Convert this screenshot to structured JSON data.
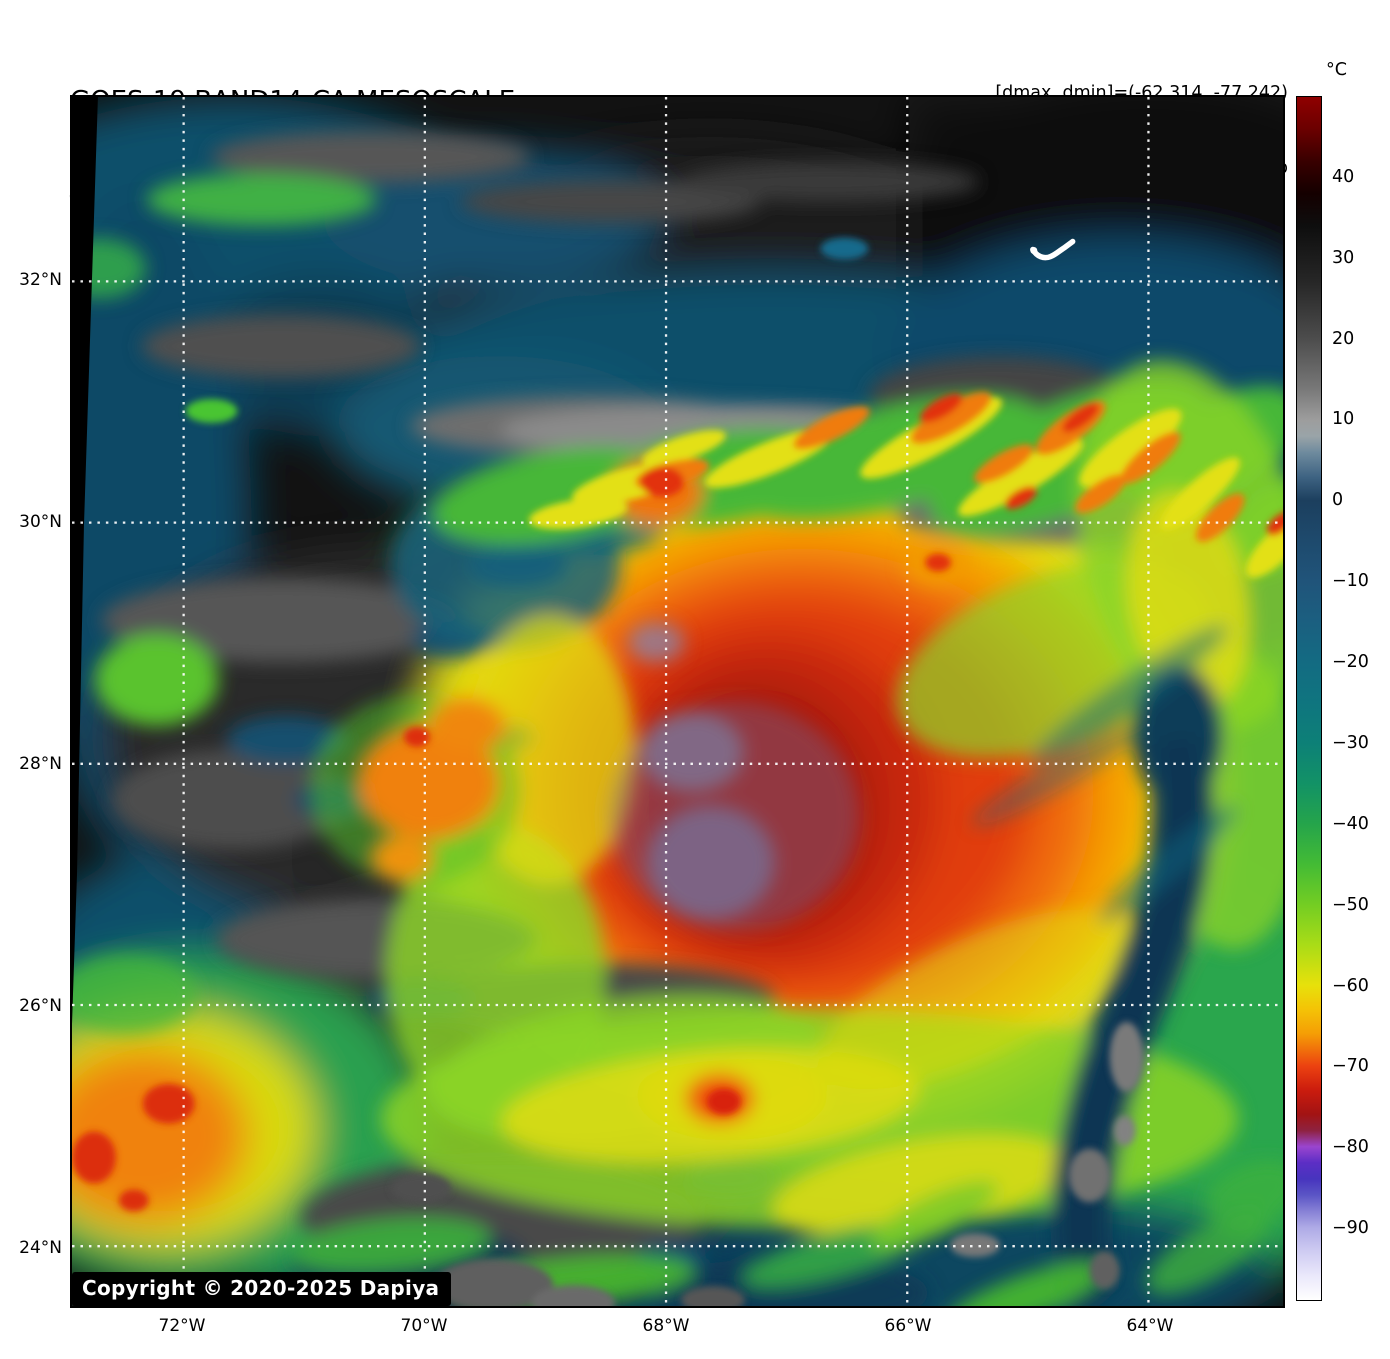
{
  "header": {
    "title": "GOES-19 BAND14-CA MESOSCALE",
    "time_line": "Time: 2025/09/29 17:57:53Z",
    "dmax_dmin": "[dmax, dmin]=(-62.314, -77.242)",
    "storm_info": "08L.HUMBERTO | 125kt, 938mb"
  },
  "map_overlay": {
    "copyright": "Copyright © 2020-2025 Dapiya"
  },
  "axes": {
    "lat_labels": [
      "32°N",
      "30°N",
      "28°N",
      "26°N",
      "24°N"
    ],
    "lon_labels": [
      "72°W",
      "70°W",
      "68°W",
      "66°W",
      "64°W"
    ]
  },
  "colorbar": {
    "unit_label": "°C",
    "value_max": 50,
    "value_min": -99,
    "ticks": [
      {
        "label": "40",
        "value": 40
      },
      {
        "label": "30",
        "value": 30
      },
      {
        "label": "20",
        "value": 20
      },
      {
        "label": "10",
        "value": 10
      },
      {
        "label": "0",
        "value": 0
      },
      {
        "label": "−10",
        "value": -10
      },
      {
        "label": "−20",
        "value": -20
      },
      {
        "label": "−30",
        "value": -30
      },
      {
        "label": "−40",
        "value": -40
      },
      {
        "label": "−50",
        "value": -50
      },
      {
        "label": "−60",
        "value": -60
      },
      {
        "label": "−70",
        "value": -70
      },
      {
        "label": "−80",
        "value": -80
      },
      {
        "label": "−90",
        "value": -90
      }
    ],
    "stops": [
      {
        "t": 50,
        "c": "#8f0000"
      },
      {
        "t": 46,
        "c": "#6b0000"
      },
      {
        "t": 42,
        "c": "#380000"
      },
      {
        "t": 38,
        "c": "#140000"
      },
      {
        "t": 34,
        "c": "#0e0e0e"
      },
      {
        "t": 27,
        "c": "#272727"
      },
      {
        "t": 20,
        "c": "#4d4d4d"
      },
      {
        "t": 14,
        "c": "#777777"
      },
      {
        "t": 10,
        "c": "#9d9d9d"
      },
      {
        "t": 8,
        "c": "#9aa4a8"
      },
      {
        "t": 6,
        "c": "#6f8b9e"
      },
      {
        "t": 3,
        "c": "#3f6483"
      },
      {
        "t": 0,
        "c": "#1c3f5e"
      },
      {
        "t": -5,
        "c": "#1e4a6d"
      },
      {
        "t": -10,
        "c": "#20547a"
      },
      {
        "t": -15,
        "c": "#1b5f80"
      },
      {
        "t": -20,
        "c": "#136b82"
      },
      {
        "t": -25,
        "c": "#0f757f"
      },
      {
        "t": -30,
        "c": "#0d8077"
      },
      {
        "t": -35,
        "c": "#129266"
      },
      {
        "t": -40,
        "c": "#25a44b"
      },
      {
        "t": -45,
        "c": "#43bb35"
      },
      {
        "t": -50,
        "c": "#73cd23"
      },
      {
        "t": -55,
        "c": "#a9dc17"
      },
      {
        "t": -60,
        "c": "#e7e10b"
      },
      {
        "t": -63,
        "c": "#f4c306"
      },
      {
        "t": -66,
        "c": "#f59e05"
      },
      {
        "t": -70,
        "c": "#ec4210"
      },
      {
        "t": -73,
        "c": "#cb1c0e"
      },
      {
        "t": -76,
        "c": "#a21313"
      },
      {
        "t": -78,
        "c": "#8e2240"
      },
      {
        "t": -80,
        "c": "#9a45cf"
      },
      {
        "t": -82,
        "c": "#5c2ec5"
      },
      {
        "t": -84,
        "c": "#4734be"
      },
      {
        "t": -86,
        "c": "#5b55c5"
      },
      {
        "t": -88,
        "c": "#8781d6"
      },
      {
        "t": -90,
        "c": "#aeaae6"
      },
      {
        "t": -93,
        "c": "#cfccf2"
      },
      {
        "t": -96,
        "c": "#eae8fb"
      },
      {
        "t": -99,
        "c": "#ffffff"
      }
    ]
  }
}
